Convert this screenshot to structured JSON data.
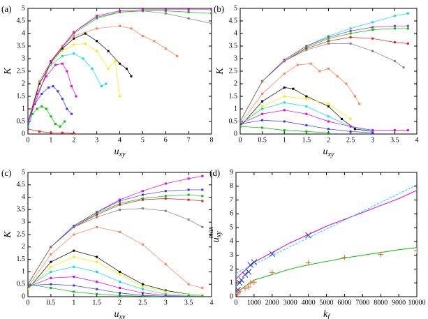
{
  "chart_data": [
    {
      "type": "line",
      "panel_label": "(a)",
      "xlabel": {
        "main": "u",
        "sub": "xy"
      },
      "ylabel": {
        "main": "K"
      },
      "xlim": [
        0,
        8
      ],
      "ylim": [
        0,
        5
      ],
      "xticks": [
        0,
        1,
        2,
        3,
        4,
        5,
        6,
        7,
        8
      ],
      "yticks": [
        0,
        0.5,
        1,
        1.5,
        2,
        2.5,
        3,
        3.5,
        4,
        4.5,
        5
      ],
      "series": [
        {
          "color": "#e41a1c",
          "x": [
            0,
            0.5,
            1,
            1.5,
            2
          ],
          "values": [
            0.2,
            0.1,
            0.05,
            0.05,
            0.02
          ]
        },
        {
          "color": "#00c000",
          "x": [
            0,
            0.2,
            0.4,
            0.6,
            0.8,
            1,
            1.2,
            1.4,
            1.6
          ],
          "values": [
            0.3,
            0.8,
            1.0,
            1.1,
            1.0,
            0.7,
            0.4,
            0.3,
            0.5
          ]
        },
        {
          "color": "#3333ff",
          "x": [
            0,
            0.3,
            0.6,
            0.9,
            1.1,
            1.3,
            1.5,
            1.7,
            1.9
          ],
          "values": [
            0.4,
            1.2,
            1.6,
            1.85,
            1.9,
            1.7,
            1.4,
            1.0,
            0.8
          ]
        },
        {
          "color": "#e000e0",
          "x": [
            0,
            0.4,
            0.8,
            1.2,
            1.5,
            1.7,
            1.9,
            2.1
          ],
          "values": [
            0.5,
            1.6,
            2.3,
            2.75,
            2.8,
            2.5,
            1.9,
            1.5
          ]
        },
        {
          "color": "#00e0e0",
          "x": [
            0,
            0.5,
            1,
            1.5,
            2,
            2.4,
            2.8,
            3.2,
            3.4
          ],
          "values": [
            0.5,
            2,
            2.75,
            3.1,
            3.2,
            3.0,
            2.6,
            1.9,
            2.0
          ]
        },
        {
          "color": "#f0f000",
          "x": [
            0,
            0.5,
            1,
            1.5,
            2,
            2.5,
            3,
            3.5,
            3.8,
            4
          ],
          "values": [
            0.5,
            2,
            2.8,
            3.3,
            3.55,
            3.6,
            3.3,
            2.6,
            2.9,
            1.5
          ]
        },
        {
          "color": "#000000",
          "x": [
            0,
            0.5,
            1,
            1.5,
            2,
            2.5,
            3,
            3.5,
            4,
            4.3,
            4.5
          ],
          "values": [
            0.5,
            2,
            2.85,
            3.4,
            3.8,
            4.0,
            3.7,
            3.3,
            2.8,
            2.6,
            2.3
          ]
        },
        {
          "color": "#ff7f50",
          "x": [
            0,
            0.5,
            1,
            1.5,
            2,
            3,
            4,
            4.5,
            5,
            5.5,
            6,
            6.5
          ],
          "values": [
            0.5,
            2.1,
            2.9,
            3.5,
            3.9,
            4.2,
            4.3,
            4.2,
            3.9,
            3.7,
            3.4,
            3.1
          ]
        },
        {
          "color": "#808080",
          "x": [
            0,
            1,
            2,
            3,
            4,
            5,
            6,
            7,
            8
          ],
          "values": [
            0.5,
            2.9,
            4.0,
            4.6,
            4.85,
            4.9,
            4.8,
            4.6,
            4.4
          ]
        },
        {
          "color": "#00c000",
          "x": [
            0,
            1,
            2,
            3,
            4,
            5,
            6,
            7,
            8
          ],
          "values": [
            0.5,
            2.9,
            4.05,
            4.65,
            4.85,
            4.9,
            4.9,
            4.85,
            4.8
          ]
        },
        {
          "color": "#e000e0",
          "x": [
            0,
            1,
            2,
            3,
            4,
            5,
            6,
            7,
            8
          ],
          "values": [
            0.5,
            2.9,
            4.05,
            4.7,
            4.9,
            4.95,
            4.95,
            4.95,
            4.95
          ]
        }
      ]
    },
    {
      "type": "line",
      "panel_label": "(b)",
      "xlabel": {
        "main": "u",
        "sub": "xy"
      },
      "ylabel": {
        "main": "K"
      },
      "xlim": [
        0,
        4
      ],
      "ylim": [
        0,
        5
      ],
      "xticks": [
        0,
        0.5,
        1,
        1.5,
        2,
        2.5,
        3,
        3.5,
        4
      ],
      "yticks": [
        0,
        0.5,
        1,
        1.5,
        2,
        2.5,
        3,
        3.5,
        4,
        4.5,
        5
      ],
      "series": [
        {
          "color": "#00e0e0",
          "x": [
            0,
            0.5,
            1,
            1.5,
            2,
            2.5,
            3,
            3.5,
            3.8
          ],
          "values": [
            0.5,
            2.1,
            2.95,
            3.5,
            3.9,
            4.2,
            4.45,
            4.7,
            4.8
          ]
        },
        {
          "color": "#9932cc",
          "x": [
            0,
            0.5,
            1,
            1.5,
            2,
            2.5,
            3,
            3.5,
            3.8
          ],
          "values": [
            0.5,
            2.1,
            2.95,
            3.5,
            3.85,
            4.1,
            4.25,
            4.3,
            4.3
          ]
        },
        {
          "color": "#00c000",
          "x": [
            0,
            0.5,
            1,
            1.5,
            2,
            2.5,
            3,
            3.5,
            3.8
          ],
          "values": [
            0.5,
            2.1,
            2.9,
            3.45,
            3.8,
            4.0,
            4.15,
            4.2,
            4.2
          ]
        },
        {
          "color": "#e41a1c",
          "x": [
            0,
            0.5,
            1,
            1.5,
            2,
            2.5,
            3,
            3.5,
            3.8
          ],
          "values": [
            0.5,
            2.1,
            2.9,
            3.4,
            3.7,
            3.85,
            3.8,
            3.65,
            3.6
          ]
        },
        {
          "color": "#808080",
          "x": [
            0,
            0.5,
            1,
            1.5,
            2,
            2.5,
            3,
            3.5,
            3.7
          ],
          "values": [
            0.5,
            2.1,
            2.9,
            3.35,
            3.6,
            3.6,
            3.3,
            2.9,
            2.65
          ]
        },
        {
          "color": "#ff7f50",
          "x": [
            0,
            0.5,
            1,
            1.3,
            1.6,
            1.8,
            2,
            2.2,
            2.4,
            2.6,
            2.7
          ],
          "values": [
            0.4,
            1.6,
            2.4,
            2.75,
            2.8,
            2.5,
            2.6,
            2.3,
            2.0,
            1.5,
            1.2
          ]
        },
        {
          "color": "#000000",
          "x": [
            0,
            0.5,
            1,
            1.2,
            1.5,
            2,
            2.3,
            2.6,
            3
          ],
          "values": [
            0.3,
            1.3,
            1.85,
            1.8,
            1.5,
            1.1,
            0.6,
            0.2,
            0.1
          ]
        },
        {
          "color": "#f0f000",
          "x": [
            0,
            0.5,
            1,
            1.5,
            2,
            2.5
          ],
          "values": [
            0.3,
            1.1,
            1.5,
            1.4,
            1.2,
            0.6
          ]
        },
        {
          "color": "#00e0e0",
          "x": [
            0,
            0.5,
            1,
            1.5,
            2,
            2.5,
            3
          ],
          "values": [
            0.4,
            1.0,
            1.25,
            1.1,
            0.7,
            0.3,
            0.1
          ]
        },
        {
          "color": "#e000e0",
          "x": [
            0,
            0.5,
            1,
            1.5,
            2,
            2.5,
            3,
            3.5,
            3.8
          ],
          "values": [
            0.4,
            0.8,
            0.95,
            0.8,
            0.5,
            0.3,
            0.15,
            0.15,
            0.15
          ]
        },
        {
          "color": "#3333ff",
          "x": [
            0,
            0.5,
            1,
            1.5,
            2,
            2.5,
            3
          ],
          "values": [
            0.4,
            0.55,
            0.5,
            0.35,
            0.2,
            0.1,
            0.05
          ]
        },
        {
          "color": "#00c000",
          "x": [
            0,
            0.5,
            1,
            1.5,
            2
          ],
          "values": [
            0.3,
            0.25,
            0.15,
            0.1,
            0.05
          ]
        }
      ]
    },
    {
      "type": "line",
      "panel_label": "(c)",
      "xlabel": {
        "main": "u",
        "sub": "xy"
      },
      "ylabel": {
        "main": "K"
      },
      "xlim": [
        0,
        4
      ],
      "ylim": [
        0,
        5
      ],
      "xticks": [
        0,
        0.5,
        1,
        1.5,
        2,
        2.5,
        3,
        3.5,
        4
      ],
      "yticks": [
        0,
        0.5,
        1,
        1.5,
        2,
        2.5,
        3,
        3.5,
        4,
        4.5,
        5
      ],
      "series": [
        {
          "color": "#e000e0",
          "x": [
            0,
            0.5,
            1,
            1.5,
            2,
            2.5,
            3,
            3.5,
            3.8
          ],
          "values": [
            0.5,
            2.0,
            2.85,
            3.4,
            3.9,
            4.25,
            4.55,
            4.75,
            4.85
          ]
        },
        {
          "color": "#3333ff",
          "x": [
            0,
            0.5,
            1,
            1.5,
            2,
            2.5,
            3,
            3.5,
            3.8
          ],
          "values": [
            0.5,
            2.0,
            2.85,
            3.4,
            3.85,
            4.1,
            4.25,
            4.3,
            4.3
          ]
        },
        {
          "color": "#00c000",
          "x": [
            0,
            0.5,
            1,
            1.5,
            2,
            2.5,
            3,
            3.5,
            3.8
          ],
          "values": [
            0.5,
            2.0,
            2.8,
            3.35,
            3.75,
            3.95,
            4.05,
            4.1,
            4.05
          ]
        },
        {
          "color": "#e41a1c",
          "x": [
            0,
            0.5,
            1,
            1.5,
            2,
            2.5,
            3,
            3.5,
            3.8
          ],
          "values": [
            0.5,
            2.0,
            2.8,
            3.3,
            3.7,
            3.9,
            3.95,
            3.9,
            3.85
          ]
        },
        {
          "color": "#808080",
          "x": [
            0,
            0.5,
            1,
            1.5,
            2,
            2.5,
            3,
            3.5,
            3.8
          ],
          "values": [
            0.5,
            2.0,
            2.8,
            3.2,
            3.5,
            3.55,
            3.45,
            3.1,
            2.8
          ]
        },
        {
          "color": "#ff7f50",
          "x": [
            0,
            0.5,
            1,
            1.5,
            2,
            2.5,
            3,
            3.5,
            3.8
          ],
          "values": [
            0.4,
            1.7,
            2.5,
            2.8,
            2.6,
            2.1,
            1.3,
            0.5,
            0.35
          ]
        },
        {
          "color": "#000000",
          "x": [
            0,
            0.5,
            1,
            1.5,
            2,
            2.5,
            3,
            3.5,
            3.8
          ],
          "values": [
            0.3,
            1.4,
            1.85,
            1.6,
            1.0,
            0.5,
            0.25,
            0.1,
            0.05
          ]
        },
        {
          "color": "#f0f000",
          "x": [
            0,
            0.5,
            1,
            1.5,
            2,
            2.5,
            3,
            3.5,
            3.8
          ],
          "values": [
            0.3,
            1.2,
            1.6,
            1.4,
            0.9,
            0.4,
            0.2,
            0.1,
            0.05
          ]
        },
        {
          "color": "#00e0e0",
          "x": [
            0,
            0.5,
            1,
            1.5,
            2,
            2.5,
            3,
            3.5,
            3.8
          ],
          "values": [
            0.4,
            1.0,
            1.2,
            1.0,
            0.6,
            0.3,
            0.1,
            0.05,
            0.02
          ]
        },
        {
          "color": "#e000e0",
          "x": [
            0,
            0.5,
            1,
            1.5,
            2,
            2.5,
            3,
            3.5,
            3.8
          ],
          "values": [
            0.4,
            0.75,
            0.8,
            0.6,
            0.35,
            0.15,
            0.05,
            0.02,
            0.01
          ]
        },
        {
          "color": "#3333ff",
          "x": [
            0,
            0.5,
            1,
            1.5,
            2,
            2.5,
            3,
            3.5,
            3.8
          ],
          "values": [
            0.45,
            0.5,
            0.45,
            0.3,
            0.15,
            0.05,
            0.02,
            0.01,
            0
          ]
        },
        {
          "color": "#00c000",
          "x": [
            0,
            0.5,
            1,
            1.5,
            2,
            2.5,
            3,
            3.5,
            3.8
          ],
          "values": [
            0.5,
            0.35,
            0.2,
            0.1,
            0.05,
            0.02,
            0,
            0,
            0
          ]
        }
      ]
    },
    {
      "type": "scatter",
      "panel_label": "(d)",
      "xlabel": {
        "main": "k",
        "sub": "f"
      },
      "ylabel": {
        "main": "u",
        "sub": "xy",
        "sup": "max"
      },
      "xlim": [
        0,
        10000
      ],
      "ylim": [
        0,
        9
      ],
      "xticks": [
        0,
        1000,
        2000,
        3000,
        4000,
        5000,
        6000,
        7000,
        8000,
        9000,
        10000
      ],
      "yticks": [
        0,
        1,
        2,
        3,
        4,
        5,
        6,
        7,
        8,
        9
      ],
      "series": [
        {
          "color": "#e000e0",
          "style": "line",
          "x": [
            0,
            1000,
            2000,
            3000,
            4000,
            5000,
            6000,
            7000,
            8000,
            9000,
            10000
          ],
          "values": [
            1.3,
            2.5,
            3.2,
            3.9,
            4.5,
            5.1,
            5.6,
            6.1,
            6.6,
            7.1,
            7.7
          ]
        },
        {
          "color": "#00e0e0",
          "style": "dashed",
          "x": [
            0,
            10000
          ],
          "values": [
            1.7,
            8.1
          ]
        },
        {
          "color": "#00c000",
          "style": "line",
          "x": [
            0,
            1000,
            2000,
            3000,
            4000,
            5000,
            6000,
            7000,
            8000,
            9000,
            10000
          ],
          "values": [
            0.3,
            1.2,
            1.6,
            2.0,
            2.3,
            2.55,
            2.8,
            3.0,
            3.2,
            3.4,
            3.55
          ]
        },
        {
          "color": "#3333cc",
          "style": "x",
          "x": [
            0,
            100,
            200,
            300,
            500,
            700,
            800,
            1000,
            2000,
            4000
          ],
          "values": [
            0.1,
            0.5,
            1.0,
            1.2,
            1.6,
            1.8,
            2.3,
            2.5,
            3.1,
            4.45
          ]
        },
        {
          "color": "#ff6030",
          "style": "plus",
          "x": [
            100,
            200,
            500,
            700,
            800,
            1000,
            2000,
            4000,
            6000,
            8000,
            10000
          ],
          "values": [
            0.2,
            0.4,
            0.6,
            0.7,
            1.0,
            1.05,
            1.75,
            2.45,
            2.85,
            3.05,
            3.35
          ]
        }
      ]
    }
  ]
}
